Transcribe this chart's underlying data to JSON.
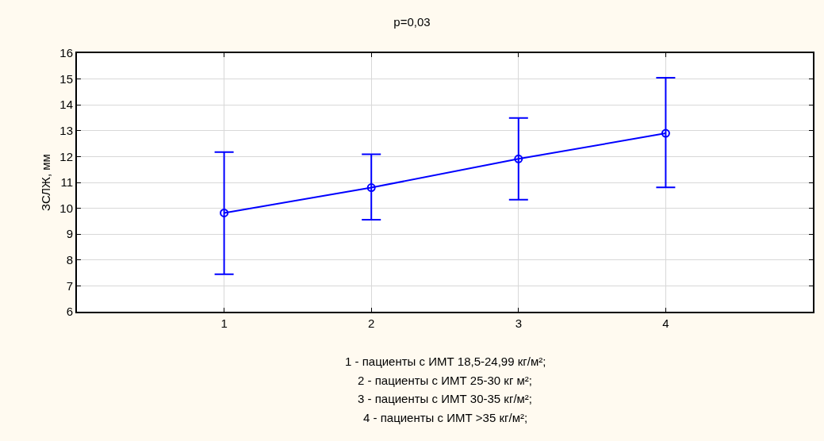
{
  "chart_data": {
    "type": "line",
    "title": "p=0,03",
    "ylabel": "ЗСЛЖ, мм",
    "x": [
      1,
      2,
      3,
      4
    ],
    "series": [
      {
        "color": "#0000ff",
        "values": [
          9.82,
          10.8,
          11.91,
          12.9
        ],
        "errors": [
          [
            7.45,
            12.17
          ],
          [
            9.56,
            12.09
          ],
          [
            10.33,
            13.49
          ],
          [
            10.81,
            15.05
          ]
        ]
      }
    ],
    "xlim": [
      0,
      5
    ],
    "xticks": [
      1,
      2,
      3,
      4
    ],
    "ylim": [
      6,
      16
    ],
    "yticks": [
      6,
      7,
      8,
      9,
      10,
      11,
      12,
      13,
      14,
      15,
      16
    ],
    "grid": true,
    "marker": "circle",
    "line_style": "solid",
    "annotations": [
      "1 - пациенты с ИМТ 18,5-24,99 кг/м²;",
      "2 - пациенты с ИМТ 25-30 кг м²;",
      "3 - пациенты с ИМТ 30-35 кг/м²;",
      "4 - пациенты с ИМТ >35 кг/м²;"
    ]
  }
}
